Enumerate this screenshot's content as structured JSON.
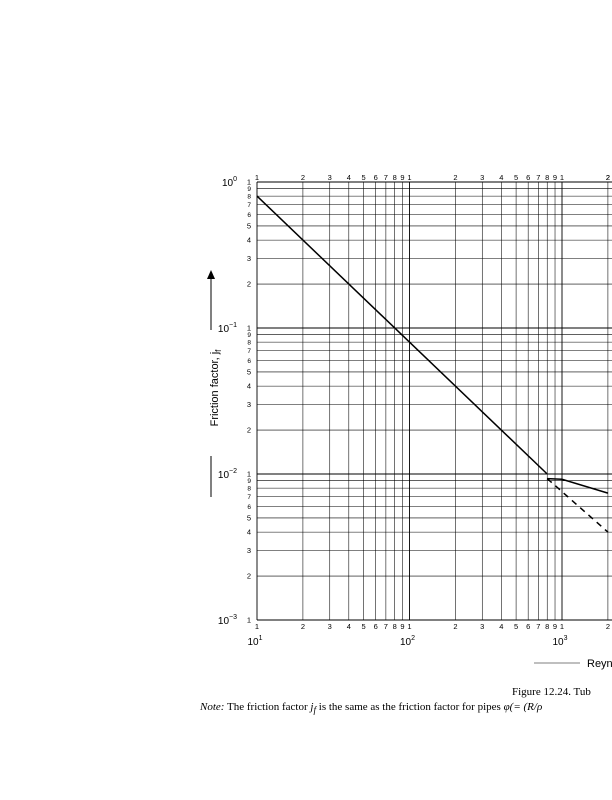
{
  "chart_data": {
    "type": "line",
    "scale": "log-log",
    "grid": true,
    "xlabel": "Reyn",
    "ylabel": "Friction factor, j",
    "ylabel_subscript": "f",
    "x_decade_labels": [
      {
        "base": "10",
        "exp": "1"
      },
      {
        "base": "10",
        "exp": "2"
      },
      {
        "base": "10",
        "exp": "3"
      }
    ],
    "y_decade_labels": [
      {
        "base": "10",
        "exp": "0"
      },
      {
        "base": "10",
        "exp": "−1"
      },
      {
        "base": "10",
        "exp": "−2"
      },
      {
        "base": "10",
        "exp": "−3"
      }
    ],
    "x_minor_tick_labels": [
      "1",
      "2",
      "3",
      "4",
      "5",
      "6",
      "7",
      "8",
      "9"
    ],
    "y_minor_tick_labels": [
      "1",
      "2",
      "3",
      "4",
      "5",
      "6",
      "7",
      "8",
      "9"
    ],
    "x_top_right_tick_label": "2",
    "xlim": [
      10,
      2000
    ],
    "ylim": [
      0.001,
      1
    ],
    "series": [
      {
        "style": "solid",
        "x": [
          10,
          800
        ],
        "y": [
          0.8,
          0.01
        ]
      },
      {
        "style": "solid",
        "x": [
          800,
          1000,
          2000
        ],
        "y": [
          0.0093,
          0.0092,
          0.0074
        ]
      },
      {
        "style": "dashed",
        "x": [
          800,
          2000
        ],
        "y": [
          0.0093,
          0.004
        ]
      }
    ]
  },
  "caption": {
    "figure": "Figure 12.24.   Tub",
    "note_label": "Note:",
    "note_text": "The friction factor ",
    "note_symbol": "j",
    "note_symbol_sub": "f",
    "note_rest": " is the same as the friction factor for pipes ",
    "note_phi": "φ(= (R/ρ"
  }
}
